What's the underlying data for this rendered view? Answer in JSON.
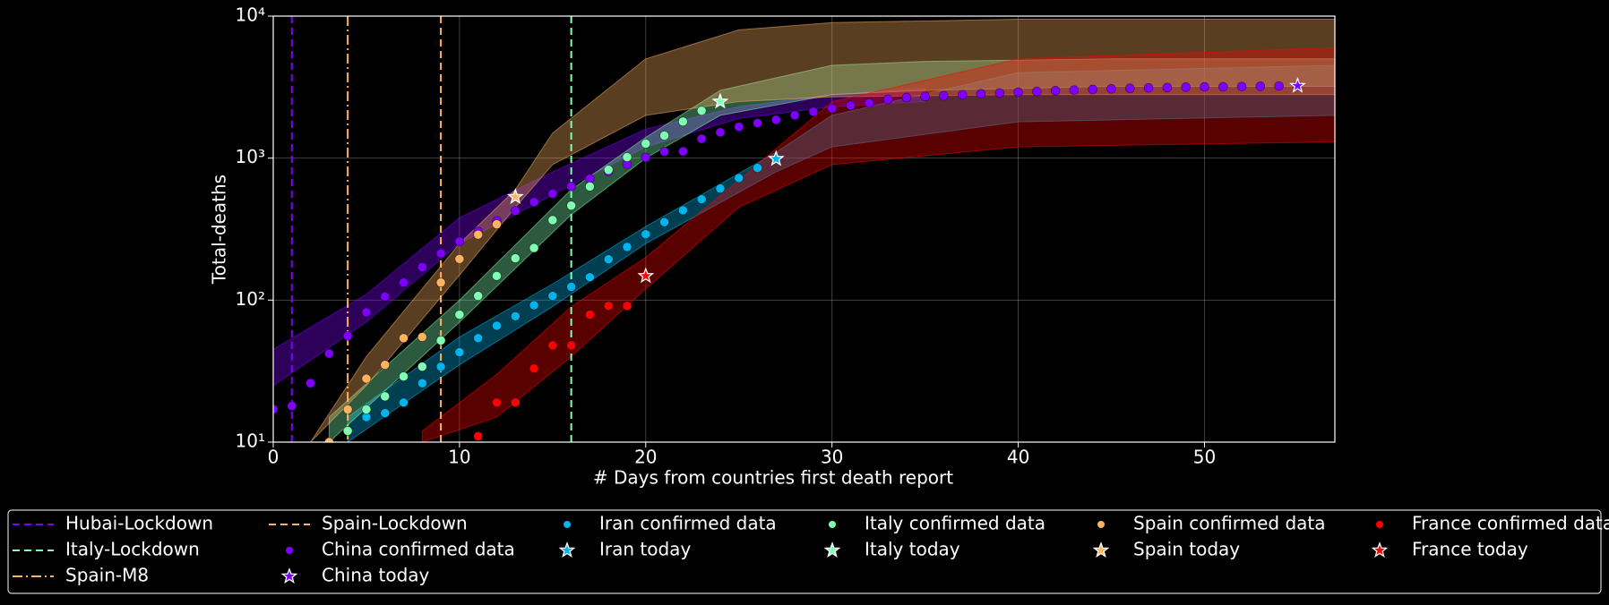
{
  "chart_data": {
    "type": "scatter",
    "xlabel": "# Days from countries first death report",
    "ylabel": "Total-deaths",
    "xlim": [
      0,
      57
    ],
    "xticks": [
      0,
      10,
      20,
      30,
      40,
      50
    ],
    "ylim": [
      10,
      10000
    ],
    "log_y": true,
    "yticks": [
      {
        "value": 10,
        "label": "10¹"
      },
      {
        "value": 100,
        "label": "10²"
      },
      {
        "value": 1000,
        "label": "10³"
      },
      {
        "value": 10000,
        "label": "10⁴"
      }
    ],
    "grid": true,
    "legend": "bottom",
    "vlines": [
      {
        "name": "Hubai-Lockdown",
        "x": 1,
        "color": "#8000ff",
        "dash": "dashed"
      },
      {
        "name": "Italy-Lockdown",
        "x": 16,
        "color": "#80ffb4",
        "dash": "dashed"
      },
      {
        "name": "Spain-M8",
        "x": 4,
        "color": "#ffb360",
        "dash": "dashdot"
      },
      {
        "name": "Spain-Lockdown",
        "x": 9,
        "color": "#ffb360",
        "dash": "dashed"
      }
    ],
    "series": [
      {
        "name": "China confirmed data",
        "color": "#8000ff",
        "x": [
          0,
          1,
          2,
          3,
          4,
          5,
          6,
          7,
          8,
          9,
          10,
          11,
          12,
          13,
          14,
          15,
          16,
          17,
          18,
          19,
          20,
          21,
          22,
          23,
          24,
          25,
          26,
          27,
          28,
          29,
          30,
          31,
          32,
          33,
          34,
          35,
          36,
          37,
          38,
          39,
          40,
          41,
          42,
          43,
          44,
          45,
          46,
          47,
          48,
          49,
          50,
          51,
          52,
          53,
          54,
          55
        ],
        "values": [
          17,
          18,
          26,
          42,
          56,
          82,
          106,
          133,
          171,
          213,
          259,
          304,
          361,
          425,
          490,
          562,
          632,
          717,
          804,
          904,
          1011,
          1111,
          1116,
          1368,
          1520,
          1662,
          1765,
          1863,
          2002,
          2121,
          2239,
          2348,
          2445,
          2595,
          2666,
          2718,
          2747,
          2791,
          2838,
          2873,
          2915,
          2946,
          2984,
          3015,
          3045,
          3073,
          3100,
          3123,
          3140,
          3162,
          3173,
          3180,
          3194,
          3204,
          3218,
          3231
        ],
        "today": {
          "name": "China today",
          "x": 55,
          "value": 3231
        },
        "ensemble": {
          "x": [
            0,
            5,
            10,
            15,
            20,
            25,
            30,
            35
          ],
          "low": [
            25,
            70,
            250,
            550,
            1200,
            1900,
            2300,
            2500
          ],
          "high": [
            45,
            110,
            380,
            800,
            1600,
            2300,
            2800,
            3100
          ]
        }
      },
      {
        "name": "Iran confirmed data",
        "color": "#00b4ec",
        "x": [
          4,
          5,
          6,
          7,
          8,
          9,
          10,
          11,
          12,
          13,
          14,
          15,
          16,
          17,
          18,
          19,
          20,
          21,
          22,
          23,
          24,
          25,
          26,
          27
        ],
        "values": [
          12,
          15,
          16,
          19,
          26,
          34,
          43,
          54,
          66,
          77,
          92,
          107,
          124,
          145,
          194,
          237,
          291,
          354,
          429,
          514,
          611,
          724,
          853,
          988
        ],
        "today": {
          "name": "Iran today",
          "x": 27,
          "value": 988
        },
        "ensemble": {
          "x": [
            4,
            10,
            15,
            20,
            27,
            30,
            40,
            57
          ],
          "low": [
            10,
            35,
            90,
            250,
            800,
            1200,
            1800,
            2000
          ],
          "high": [
            15,
            55,
            130,
            330,
            1100,
            2000,
            4000,
            4500
          ]
        }
      },
      {
        "name": "Italy confirmed data",
        "color": "#80ffb4",
        "x": [
          4,
          5,
          6,
          7,
          8,
          9,
          10,
          11,
          12,
          13,
          14,
          15,
          16,
          17,
          18,
          19,
          20,
          21,
          22,
          23,
          24
        ],
        "values": [
          12,
          17,
          21,
          29,
          34,
          52,
          79,
          107,
          148,
          197,
          233,
          366,
          463,
          631,
          827,
          1016,
          1266,
          1441,
          1809,
          2158,
          2503
        ],
        "today": {
          "name": "Italy today",
          "x": 24,
          "value": 2503
        },
        "ensemble": {
          "x": [
            3,
            10,
            16,
            20,
            24,
            30,
            35,
            45,
            57
          ],
          "low": [
            10,
            70,
            400,
            1000,
            2000,
            2800,
            3000,
            3200,
            3200
          ],
          "high": [
            15,
            100,
            600,
            1400,
            3000,
            4500,
            4800,
            5000,
            5000
          ]
        }
      },
      {
        "name": "Spain confirmed data",
        "color": "#ffb360",
        "x": [
          3,
          4,
          5,
          6,
          7,
          8,
          9,
          10,
          11,
          12,
          13
        ],
        "values": [
          10,
          17,
          28,
          35,
          54,
          55,
          133,
          195,
          289,
          342,
          533
        ],
        "today": {
          "name": "Spain today",
          "x": 13,
          "value": 533
        },
        "ensemble": {
          "x": [
            2,
            5,
            10,
            13,
            15,
            20,
            25,
            30,
            40,
            57
          ],
          "low": [
            10,
            25,
            150,
            450,
            900,
            2000,
            2500,
            2700,
            2800,
            2800
          ],
          "high": [
            10,
            40,
            250,
            600,
            1500,
            5000,
            8000,
            9000,
            9500,
            9500
          ]
        }
      },
      {
        "name": "France confirmed data",
        "color": "#ff0000",
        "x": [
          11,
          12,
          13,
          14,
          15,
          16,
          17,
          18,
          19,
          20
        ],
        "values": [
          11,
          19,
          19,
          33,
          48,
          48,
          79,
          91,
          91,
          148
        ],
        "today": {
          "name": "France today",
          "x": 20,
          "value": 148
        },
        "ensemble": {
          "x": [
            8,
            12,
            16,
            20,
            25,
            30,
            40,
            57
          ],
          "low": [
            10,
            15,
            40,
            120,
            450,
            900,
            1200,
            1300
          ],
          "high": [
            12,
            30,
            90,
            200,
            700,
            2500,
            5000,
            6000
          ]
        }
      }
    ]
  }
}
